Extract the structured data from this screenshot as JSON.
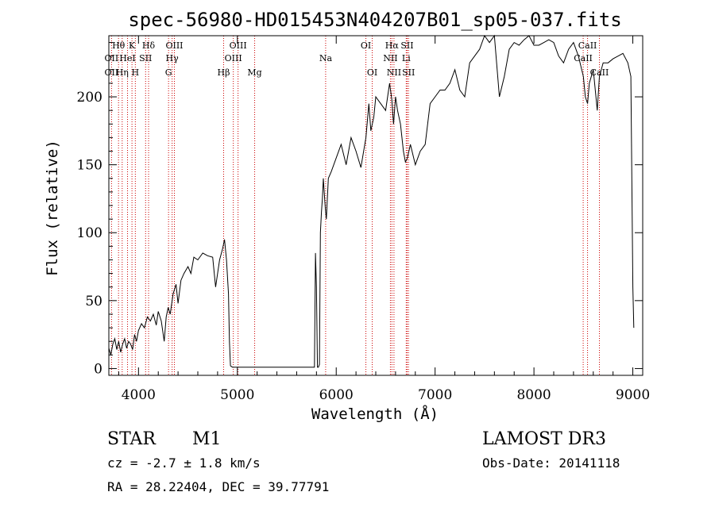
{
  "chart_data": {
    "type": "line",
    "title": "spec-56980-HD015453N404207B01_sp05-037.fits",
    "xlabel": "Wavelength (Å)",
    "ylabel": "Flux (relative)",
    "xlim": [
      3700,
      9100
    ],
    "ylim": [
      -5,
      245
    ],
    "x_ticks": [
      4000,
      5000,
      6000,
      7000,
      8000,
      9000
    ],
    "y_ticks": [
      0,
      50,
      100,
      150,
      200
    ],
    "grid": false,
    "series": [
      {
        "x": [
          3700,
          3720,
          3740,
          3760,
          3780,
          3800,
          3820,
          3840,
          3860,
          3880,
          3900,
          3920,
          3940,
          3960,
          3980,
          4000,
          4030,
          4060,
          4090,
          4120,
          4150,
          4180,
          4200,
          4230,
          4260,
          4280,
          4300,
          4320,
          4350,
          4380,
          4400,
          4430,
          4460,
          4500,
          4530,
          4560,
          4600,
          4650,
          4700,
          4750,
          4780,
          4820,
          4850,
          4870,
          4890,
          4910,
          4920,
          4930,
          4950,
          5000,
          5200,
          5500,
          5780,
          5790,
          5800,
          5810,
          5820,
          5830,
          5840,
          5850,
          5860,
          5870,
          5880,
          5890,
          5900,
          5920,
          5950,
          6000,
          6050,
          6100,
          6150,
          6200,
          6250,
          6300,
          6330,
          6350,
          6380,
          6400,
          6450,
          6500,
          6520,
          6540,
          6562,
          6580,
          6600,
          6620,
          6650,
          6680,
          6700,
          6720,
          6750,
          6800,
          6850,
          6900,
          6950,
          7000,
          7050,
          7100,
          7150,
          7200,
          7250,
          7300,
          7350,
          7400,
          7450,
          7500,
          7550,
          7600,
          7650,
          7700,
          7750,
          7800,
          7850,
          7900,
          7950,
          8000,
          8050,
          8100,
          8150,
          8200,
          8250,
          8300,
          8350,
          8400,
          8450,
          8500,
          8520,
          8542,
          8560,
          8600,
          8640,
          8662,
          8700,
          8750,
          8800,
          8850,
          8900,
          8950,
          8980,
          9000,
          9010
        ],
        "y": [
          15,
          10,
          18,
          22,
          14,
          20,
          12,
          18,
          22,
          15,
          20,
          18,
          14,
          25,
          20,
          28,
          33,
          30,
          38,
          35,
          40,
          32,
          42,
          35,
          20,
          38,
          45,
          40,
          55,
          62,
          48,
          65,
          70,
          75,
          70,
          82,
          80,
          85,
          83,
          82,
          60,
          80,
          88,
          95,
          80,
          55,
          20,
          2,
          1,
          1,
          1,
          1,
          1,
          85,
          60,
          1,
          1,
          3,
          100,
          115,
          125,
          140,
          128,
          118,
          110,
          140,
          145,
          155,
          165,
          150,
          170,
          160,
          148,
          170,
          195,
          175,
          185,
          200,
          195,
          190,
          200,
          210,
          198,
          180,
          200,
          190,
          180,
          160,
          152,
          155,
          165,
          150,
          160,
          165,
          195,
          200,
          205,
          205,
          210,
          220,
          205,
          200,
          225,
          230,
          235,
          245,
          240,
          245,
          200,
          215,
          235,
          240,
          238,
          242,
          245,
          238,
          238,
          240,
          242,
          240,
          230,
          225,
          235,
          240,
          230,
          215,
          200,
          195,
          210,
          220,
          190,
          215,
          225,
          225,
          228,
          230,
          232,
          225,
          215,
          60,
          30
        ]
      }
    ],
    "spectral_lines": [
      {
        "name": "Hθ",
        "wavelength": 3798,
        "row": 0
      },
      {
        "name": "OII",
        "wavelength": 3727,
        "row": 1
      },
      {
        "name": "OII",
        "wavelength": 3727,
        "row": 2
      },
      {
        "name": "K",
        "wavelength": 3934,
        "row": 0
      },
      {
        "name": "HeI",
        "wavelength": 3889,
        "row": 1
      },
      {
        "name": "Hη",
        "wavelength": 3835,
        "row": 2
      },
      {
        "name": "Hδ",
        "wavelength": 4102,
        "row": 0
      },
      {
        "name": "SII",
        "wavelength": 4072,
        "row": 1
      },
      {
        "name": "H",
        "wavelength": 3968,
        "row": 2
      },
      {
        "name": "OIII",
        "wavelength": 4363,
        "row": 0
      },
      {
        "name": "Hγ",
        "wavelength": 4340,
        "row": 1
      },
      {
        "name": "G",
        "wavelength": 4304,
        "row": 2
      },
      {
        "name": "Hβ",
        "wavelength": 4861,
        "row": 2
      },
      {
        "name": "OIII",
        "wavelength": 5007,
        "row": 0
      },
      {
        "name": "OIII",
        "wavelength": 4959,
        "row": 1
      },
      {
        "name": "Mg",
        "wavelength": 5175,
        "row": 2
      },
      {
        "name": "Na",
        "wavelength": 5893,
        "row": 1
      },
      {
        "name": "OI",
        "wavelength": 6300,
        "row": 0
      },
      {
        "name": "OI",
        "wavelength": 6364,
        "row": 2
      },
      {
        "name": "Hα",
        "wavelength": 6563,
        "row": 0
      },
      {
        "name": "NII",
        "wavelength": 6548,
        "row": 1
      },
      {
        "name": "NII",
        "wavelength": 6584,
        "row": 2
      },
      {
        "name": "SII",
        "wavelength": 6717,
        "row": 0
      },
      {
        "name": "Li",
        "wavelength": 6708,
        "row": 1
      },
      {
        "name": "SII",
        "wavelength": 6731,
        "row": 2
      },
      {
        "name": "CaII",
        "wavelength": 8542,
        "row": 0
      },
      {
        "name": "CaII",
        "wavelength": 8498,
        "row": 1
      },
      {
        "name": "CaII",
        "wavelength": 8662,
        "row": 2
      }
    ],
    "line_color": "#000000",
    "marker_color": "#cc0000"
  },
  "info": {
    "class_label": "STAR",
    "subclass": "M1",
    "survey": "LAMOST DR3",
    "cz": "cz = -2.7 ± 1.8 km/s",
    "obs_date": "Obs-Date: 20141118",
    "coords": "RA =  28.22404, DEC =  39.77791"
  }
}
